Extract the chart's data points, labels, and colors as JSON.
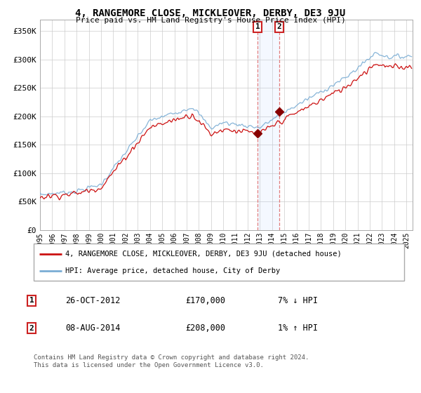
{
  "title": "4, RANGEMORE CLOSE, MICKLEOVER, DERBY, DE3 9JU",
  "subtitle": "Price paid vs. HM Land Registry's House Price Index (HPI)",
  "ylabel_ticks": [
    "£0",
    "£50K",
    "£100K",
    "£150K",
    "£200K",
    "£250K",
    "£300K",
    "£350K"
  ],
  "ytick_values": [
    0,
    50000,
    100000,
    150000,
    200000,
    250000,
    300000,
    350000
  ],
  "ylim": [
    0,
    370000
  ],
  "xlim_start": 1995.0,
  "xlim_end": 2025.5,
  "hpi_color": "#7aadd4",
  "price_color": "#cc1111",
  "sale1_date": 2012.82,
  "sale1_price": 170000,
  "sale2_date": 2014.6,
  "sale2_price": 208000,
  "legend_line1": "4, RANGEMORE CLOSE, MICKLEOVER, DERBY, DE3 9JU (detached house)",
  "legend_line2": "HPI: Average price, detached house, City of Derby",
  "table_row1_num": "1",
  "table_row1_date": "26-OCT-2012",
  "table_row1_price": "£170,000",
  "table_row1_hpi": "7% ↓ HPI",
  "table_row2_num": "2",
  "table_row2_date": "08-AUG-2014",
  "table_row2_price": "£208,000",
  "table_row2_hpi": "1% ↑ HPI",
  "footnote": "Contains HM Land Registry data © Crown copyright and database right 2024.\nThis data is licensed under the Open Government Licence v3.0.",
  "background_color": "#ffffff",
  "grid_color": "#cccccc"
}
